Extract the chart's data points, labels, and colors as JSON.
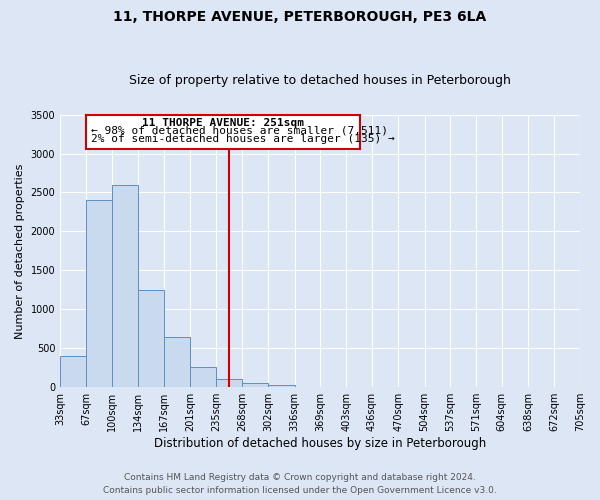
{
  "title": "11, THORPE AVENUE, PETERBOROUGH, PE3 6LA",
  "subtitle": "Size of property relative to detached houses in Peterborough",
  "xlabel": "Distribution of detached houses by size in Peterborough",
  "ylabel": "Number of detached properties",
  "bin_edges": [
    33,
    67,
    100,
    134,
    167,
    201,
    235,
    268,
    302,
    336,
    369,
    403,
    436,
    470,
    504,
    537,
    571,
    604,
    638,
    672,
    705
  ],
  "bar_heights": [
    400,
    2400,
    2600,
    1250,
    650,
    260,
    100,
    60,
    30,
    5,
    2,
    1,
    0,
    0,
    0,
    0,
    0,
    0,
    0,
    0
  ],
  "bar_color": "#c9d9ee",
  "bar_edge_color": "#5b8fc9",
  "vline_x": 251,
  "vline_color": "#cc0000",
  "ylim": [
    0,
    3500
  ],
  "yticks": [
    0,
    500,
    1000,
    1500,
    2000,
    2500,
    3000,
    3500
  ],
  "annotation_title": "11 THORPE AVENUE: 251sqm",
  "annotation_line1": "← 98% of detached houses are smaller (7,511)",
  "annotation_line2": "2% of semi-detached houses are larger (135) →",
  "background_color": "#dce6f5",
  "plot_bg_color": "#dce6f5",
  "footer_line1": "Contains HM Land Registry data © Crown copyright and database right 2024.",
  "footer_line2": "Contains public sector information licensed under the Open Government Licence v3.0.",
  "title_fontsize": 10,
  "subtitle_fontsize": 9,
  "xlabel_fontsize": 8.5,
  "ylabel_fontsize": 8,
  "tick_fontsize": 7,
  "annotation_fontsize": 8,
  "footer_fontsize": 6.5
}
